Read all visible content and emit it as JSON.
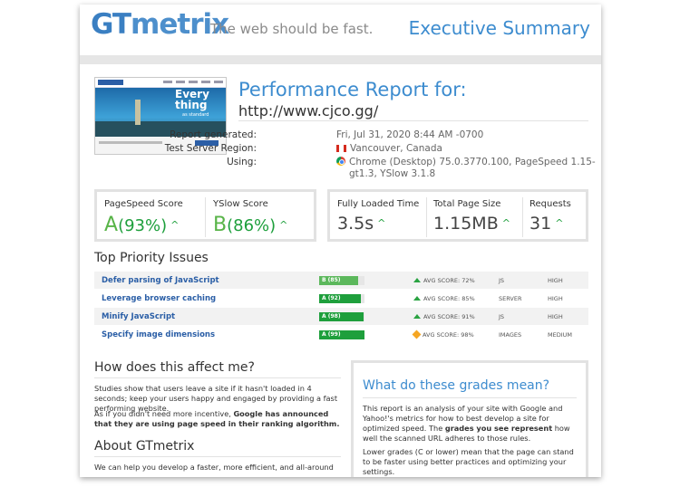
{
  "header": {
    "logo": "GTmetrix",
    "tagline": "The web should be fast.",
    "title": "Executive Summary"
  },
  "thumbnail": {
    "hero_text_1": "Every",
    "hero_text_2": "thing",
    "hero_sub": "as standard"
  },
  "report": {
    "title": "Performance Report for:",
    "url": "http://www.cjco.gg/",
    "generated_label": "Report generated:",
    "generated_value": "Fri, Jul 31, 2020 8:44 AM -0700",
    "region_label": "Test Server Region:",
    "region_value": "Vancouver, Canada",
    "using_label": "Using:",
    "using_value_1": "Chrome (Desktop) 75.0.3770.100, PageSpeed 1.15-",
    "using_value_2": "gt1.3, YSlow 3.1.8"
  },
  "scores": {
    "pagespeed_label": "PageSpeed Score",
    "pagespeed_grade": "A",
    "pagespeed_pct": "(93%)",
    "yslow_label": "YSlow Score",
    "yslow_grade": "B",
    "yslow_pct": "(86%)"
  },
  "timings": {
    "loaded_label": "Fully Loaded Time",
    "loaded_value": "3.5s",
    "size_label": "Total Page Size",
    "size_value": "1.15MB",
    "requests_label": "Requests",
    "requests_value": "31"
  },
  "issues_title": "Top Priority Issues",
  "issues": [
    {
      "name": "Defer parsing of JavaScript",
      "grade": "B (85)",
      "score": 85,
      "color": "#5cb85c",
      "avg": "AVG SCORE: 72%",
      "avg_icon": "up-arrow-icon",
      "type": "JS",
      "priority": "HIGH"
    },
    {
      "name": "Leverage browser caching",
      "grade": "A (92)",
      "score": 92,
      "color": "#1e9f3c",
      "avg": "AVG SCORE: 85%",
      "avg_icon": "up-arrow-icon",
      "type": "SERVER",
      "priority": "HIGH"
    },
    {
      "name": "Minify JavaScript",
      "grade": "A (98)",
      "score": 98,
      "color": "#1e9f3c",
      "avg": "AVG SCORE: 91%",
      "avg_icon": "up-arrow-icon",
      "type": "JS",
      "priority": "HIGH"
    },
    {
      "name": "Specify image dimensions",
      "grade": "A (99)",
      "score": 99,
      "color": "#1e9f3c",
      "avg": "AVG SCORE: 98%",
      "avg_icon": "warning-diamond-icon",
      "type": "IMAGES",
      "priority": "MEDIUM"
    }
  ],
  "affect": {
    "title": "How does this affect me?",
    "p1": "Studies show that users leave a site if it hasn't loaded in 4 seconds; keep your users happy and engaged by providing a fast performing website.",
    "p2_plain": "As if you didn't need more incentive, ",
    "p2_bold": "Google has announced that they are using page speed in their ranking algorithm."
  },
  "about": {
    "title": "About GTmetrix",
    "p1": "We can help you develop a faster, more efficient, and all-around"
  },
  "grades_box": {
    "title": "What do these grades mean?",
    "p1_plain_1": "This report is an analysis of your site with Google and Yahoo!'s metrics for how to best develop a site for optimized speed. The ",
    "p1_bold": "grades you see represent",
    "p1_plain_2": " how well the scanned URL adheres to those rules.",
    "p2": "Lower grades (C or lower) mean that the page can stand to be faster using better practices and optimizing your settings."
  }
}
